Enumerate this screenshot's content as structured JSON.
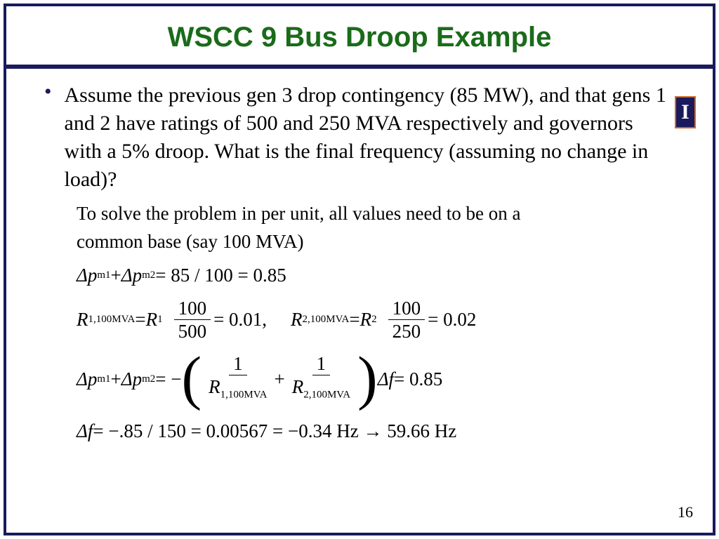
{
  "slide": {
    "title": "WSCC 9 Bus Droop Example",
    "title_color": "#1a6b1a",
    "title_fontsize": 40,
    "border_color": "#1a1a5c",
    "bullet": "Assume the previous gen 3 drop contingency (85 MW), and that gens 1 and 2 have ratings of 500 and 250 MVA respectively and governors with a 5% droop.  What is the final frequency (assuming no change in load)?",
    "solve_l1": "To solve the problem in per unit, all values need to be on a",
    "solve_l2": "common base (say 100 MVA)",
    "eq1": {
      "lhs1": "Δp",
      "sub1": "m1",
      "plus": " + ",
      "lhs2": "Δp",
      "sub2": "m2",
      "rhs": " = 85 / 100 = 0.85"
    },
    "eq2": {
      "r1lhs": "R",
      "r1sub": "1,100MVA",
      "r1mid": " = ",
      "r1r": "R",
      "r1rsub": "1",
      "frac1_num": "100",
      "frac1_den": "500",
      "r1tail": " = 0.01,",
      "r2lhs": "R",
      "r2sub": "2,100MVA",
      "r2mid": " = ",
      "r2r": "R",
      "r2rsub": "2",
      "frac2_num": "100",
      "frac2_den": "250",
      "r2tail": " = 0.02"
    },
    "eq3": {
      "lhs1": "Δp",
      "sub1": "m1",
      "plus1": " + ",
      "lhs2": "Δp",
      "sub2": "m2",
      "eq_neg": " = −",
      "f1num": "1",
      "f1den_sym": "R",
      "f1den_sub": "1,100MVA",
      "plus2": " + ",
      "f2num": "1",
      "f2den_sym": "R",
      "f2den_sub": "2,100MVA",
      "df": "Δf",
      "tail": " = 0.85"
    },
    "eq4": {
      "df": "Δf",
      "text": " = −.85 / 150 = 0.00567 = −0.34 Hz → 59.66 Hz"
    },
    "page_number": "16",
    "logo_letter": "I"
  }
}
